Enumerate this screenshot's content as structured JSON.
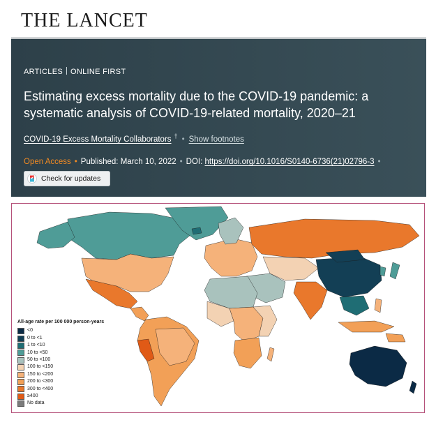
{
  "journal": {
    "name": "THE LANCET"
  },
  "article": {
    "section": "ARTICLES",
    "stage": "ONLINE FIRST",
    "title": "Estimating excess mortality due to the COVID-19 pandemic: a systematic analysis of COVID-19-related mortality, 2020–21",
    "authors": "COVID-19 Excess Mortality Collaborators",
    "author_mark": "†",
    "footnotes_link": "Show footnotes",
    "open_access": "Open Access",
    "published_label": "Published:",
    "published_date": "March 10, 2022",
    "doi_label": "DOI:",
    "doi": "https://doi.org/10.1016/S0140-6736(21)02796-3",
    "updates_button": "Check for updates",
    "updates_icon": "crossmark-icon"
  },
  "map": {
    "legend_title": "All-age rate per 100 000 person-years",
    "legend": [
      {
        "label": "<0",
        "color": "#0b2a45"
      },
      {
        "label": "0 to <1",
        "color": "#133f55"
      },
      {
        "label": "1 to <10",
        "color": "#1f6d74"
      },
      {
        "label": "10 to <50",
        "color": "#4f9c97"
      },
      {
        "label": "50 to <100",
        "color": "#a9c2bd"
      },
      {
        "label": "100 to <150",
        "color": "#f3d2b3"
      },
      {
        "label": "150 to <200",
        "color": "#f5b27a"
      },
      {
        "label": "200 to <300",
        "color": "#f2a057"
      },
      {
        "label": "300 to <400",
        "color": "#e9782c"
      },
      {
        "label": "≥400",
        "color": "#e05a16"
      },
      {
        "label": "No data",
        "color": "#7b7b7b"
      }
    ]
  }
}
